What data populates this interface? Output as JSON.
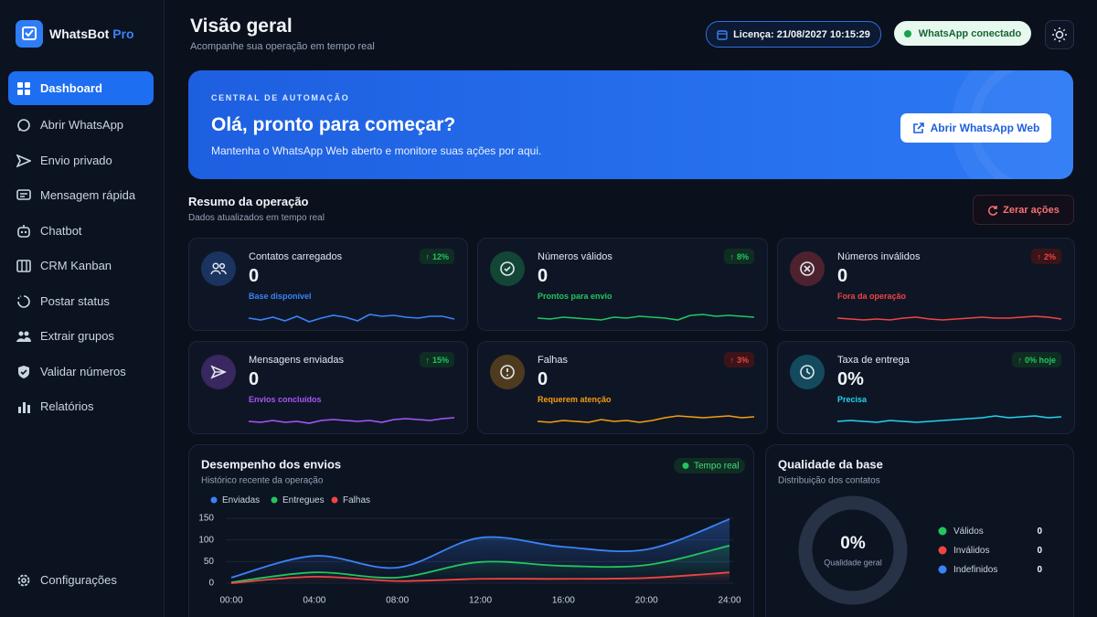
{
  "sidebar": {
    "brand": "WhatsBot",
    "brand_suffix": "Pro",
    "nav": [
      "Dashboard",
      "Abrir WhatsApp",
      "Envio privado",
      "Mensagem rápida",
      "Chatbot",
      "CRM Kanban",
      "Postar status",
      "Extrair grupos",
      "Validar números",
      "Relatórios"
    ],
    "settings": "Configurações"
  },
  "header": {
    "title": "Visão geral",
    "subtitle": "Acompanhe sua operação em tempo real",
    "license": "Licença: 21/08/2027 10:15:29",
    "status": "WhatsApp conectado"
  },
  "banner": {
    "eyebrow": "CENTRAL DE AUTOMAÇÃO",
    "title": "Olá, pronto para começar?",
    "text": "Mantenha o WhatsApp Web aberto e monitore suas ações por aqui.",
    "button": "Abrir WhatsApp Web"
  },
  "summary": {
    "title": "Resumo da operação",
    "subtitle": "Dados atualizados em tempo real",
    "reset": "Zerar ações",
    "cards": [
      {
        "title": "Contatos carregados",
        "value": "0",
        "caption": "Base disponível",
        "badge": "12%",
        "color": "#3b82f6"
      },
      {
        "title": "Números válidos",
        "value": "0",
        "caption": "Prontos para envio",
        "badge": "8%",
        "color": "#22c55e"
      },
      {
        "title": "Números inválidos",
        "value": "0",
        "caption": "Fora da operação",
        "badge": "2%",
        "color": "#ef4444"
      },
      {
        "title": "Mensagens enviadas",
        "value": "0",
        "caption": "Envios concluídos",
        "badge": "15%",
        "color": "#a855f7"
      },
      {
        "title": "Falhas",
        "value": "0",
        "caption": "Requerem atenção",
        "badge": "3%",
        "color": "#f59e0b"
      },
      {
        "title": "Taxa de entrega",
        "value": "0%",
        "caption": "Precisa",
        "badge": "0% hoje",
        "color": "#22d3ee"
      }
    ]
  },
  "chart_data": [
    {
      "type": "line",
      "title": "Desempenho dos envios",
      "subtitle": "Histórico recente da operação",
      "annotation": "Tempo real",
      "categories": [
        "00:00",
        "04:00",
        "08:00",
        "12:00",
        "16:00",
        "20:00",
        "24:00"
      ],
      "series": [
        {
          "name": "Enviadas",
          "color": "#3b82f6",
          "values": [
            13,
            63,
            36,
            105,
            84,
            78,
            148
          ]
        },
        {
          "name": "Entregues",
          "color": "#22c55e",
          "values": [
            2,
            25,
            13,
            49,
            40,
            42,
            87
          ]
        },
        {
          "name": "Falhas",
          "color": "#ef4444",
          "values": [
            0,
            15,
            5,
            10,
            10,
            12,
            25
          ]
        }
      ],
      "ylim": [
        0,
        150
      ],
      "yticks": [
        0,
        50,
        100,
        150
      ]
    },
    {
      "type": "pie",
      "title": "Qualidade da base",
      "subtitle": "Distribuição dos contatos",
      "center_text": "0%",
      "center_label": "Qualidade geral",
      "categories": [
        "Válidos",
        "Inválidos",
        "Indefinidos"
      ],
      "values": [
        0,
        0,
        0
      ],
      "colors": [
        "#22c55e",
        "#ef4444",
        "#3b82f6"
      ]
    }
  ]
}
